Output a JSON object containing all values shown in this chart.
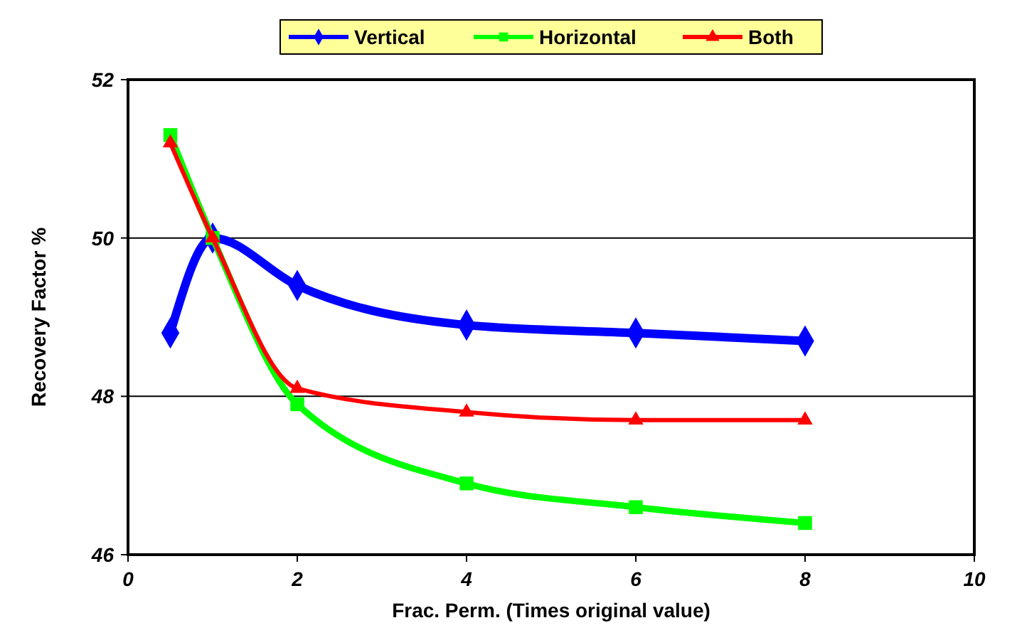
{
  "chart_data": {
    "type": "line",
    "xlabel": "Frac. Perm. (Times original value)",
    "ylabel": "Recovery Factor %",
    "xlim": [
      0,
      10
    ],
    "xticks": [
      0,
      2,
      4,
      6,
      8,
      10
    ],
    "ylim": [
      46,
      52
    ],
    "yticks": [
      46,
      48,
      50,
      52
    ],
    "grid": "y",
    "legend": "top",
    "line_style": "solid",
    "series": [
      {
        "name": "Vertical",
        "color": "#0000ff",
        "marker": "diamond",
        "x": [
          0.5,
          1,
          2,
          4,
          6,
          8
        ],
        "values": [
          48.8,
          50.0,
          49.4,
          48.9,
          48.8,
          48.7
        ]
      },
      {
        "name": "Horizontal",
        "color": "#00ff00",
        "marker": "square",
        "x": [
          0.5,
          1,
          2,
          4,
          6,
          8
        ],
        "values": [
          51.3,
          50.0,
          47.9,
          46.9,
          46.6,
          46.4
        ]
      },
      {
        "name": "Both",
        "color": "#ff0000",
        "marker": "triangle",
        "x": [
          0.5,
          1,
          2,
          4,
          6,
          8
        ],
        "values": [
          51.2,
          50.0,
          48.1,
          47.8,
          47.7,
          47.7
        ]
      }
    ]
  }
}
